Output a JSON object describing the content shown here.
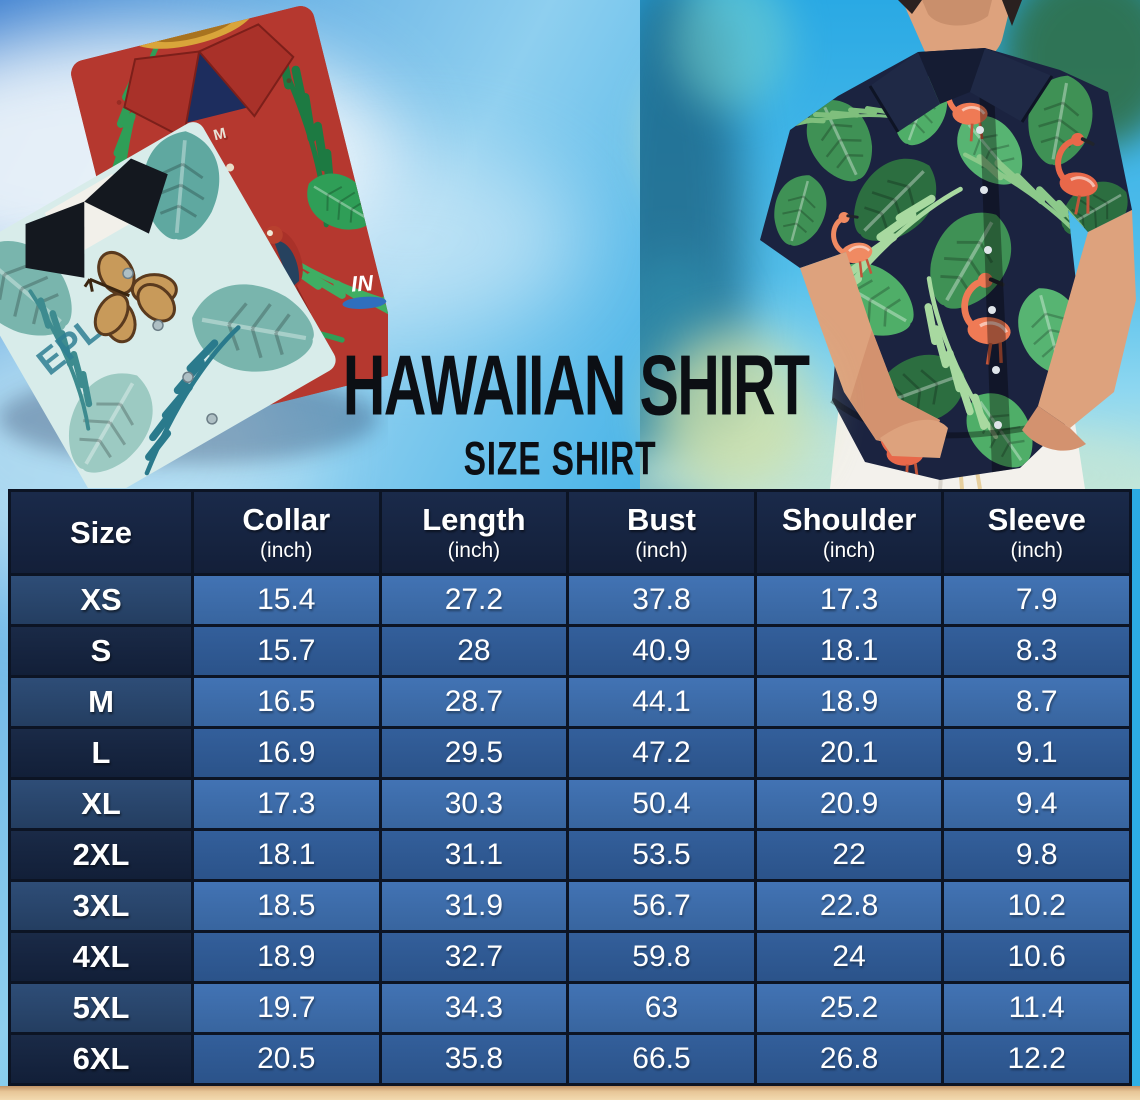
{
  "title": "HAWAIIAN SHIRT",
  "subtitle": "SIZE SHIRT",
  "illustrations": {
    "red_shirt_size_tag": "M",
    "red_shirt_logo_text": "IN",
    "teal_shirt_print_text": "EPL"
  },
  "colors": {
    "sky_deep": "#3b7ecf",
    "sky_cyan": "#29a7e2",
    "table_grid": "#0c1424",
    "header_bg": "#16233e",
    "row_light": "#3d6dae",
    "row_dark": "#2f5992",
    "size_col_light": "#2a4569",
    "size_col_dark": "#15223c",
    "sand": "#eed2a6",
    "title_color": "#0c0f14",
    "table_text": "#ffffff",
    "red_shirt": "#b5382f",
    "teal_shirt": "#d8ecea",
    "man_shirt_navy": "#1b2340",
    "flamingo_orange": "#ef7a55",
    "leaf_green": "#3f9155"
  },
  "chart_data": {
    "type": "table",
    "title": "HAWAIIAN SHIRT SIZE SHIRT",
    "unit": "inch",
    "columns": [
      {
        "label": "Size",
        "unit": ""
      },
      {
        "label": "Collar",
        "unit": "(inch)"
      },
      {
        "label": "Length",
        "unit": "(inch)"
      },
      {
        "label": "Bust",
        "unit": "(inch)"
      },
      {
        "label": "Shoulder",
        "unit": "(inch)"
      },
      {
        "label": "Sleeve",
        "unit": "(inch)"
      }
    ],
    "rows": [
      {
        "size": "XS",
        "values": [
          15.4,
          27.2,
          37.8,
          17.3,
          7.9
        ]
      },
      {
        "size": "S",
        "values": [
          15.7,
          28,
          40.9,
          18.1,
          8.3
        ]
      },
      {
        "size": "M",
        "values": [
          16.5,
          28.7,
          44.1,
          18.9,
          8.7
        ]
      },
      {
        "size": "L",
        "values": [
          16.9,
          29.5,
          47.2,
          20.1,
          9.1
        ]
      },
      {
        "size": "XL",
        "values": [
          17.3,
          30.3,
          50.4,
          20.9,
          9.4
        ]
      },
      {
        "size": "2XL",
        "values": [
          18.1,
          31.1,
          53.5,
          22,
          9.8
        ]
      },
      {
        "size": "3XL",
        "values": [
          18.5,
          31.9,
          56.7,
          22.8,
          10.2
        ]
      },
      {
        "size": "4XL",
        "values": [
          18.9,
          32.7,
          59.8,
          24,
          10.6
        ]
      },
      {
        "size": "5XL",
        "values": [
          19.7,
          34.3,
          63,
          25.2,
          11.4
        ]
      },
      {
        "size": "6XL",
        "values": [
          20.5,
          35.8,
          66.5,
          26.8,
          12.2
        ]
      }
    ]
  }
}
